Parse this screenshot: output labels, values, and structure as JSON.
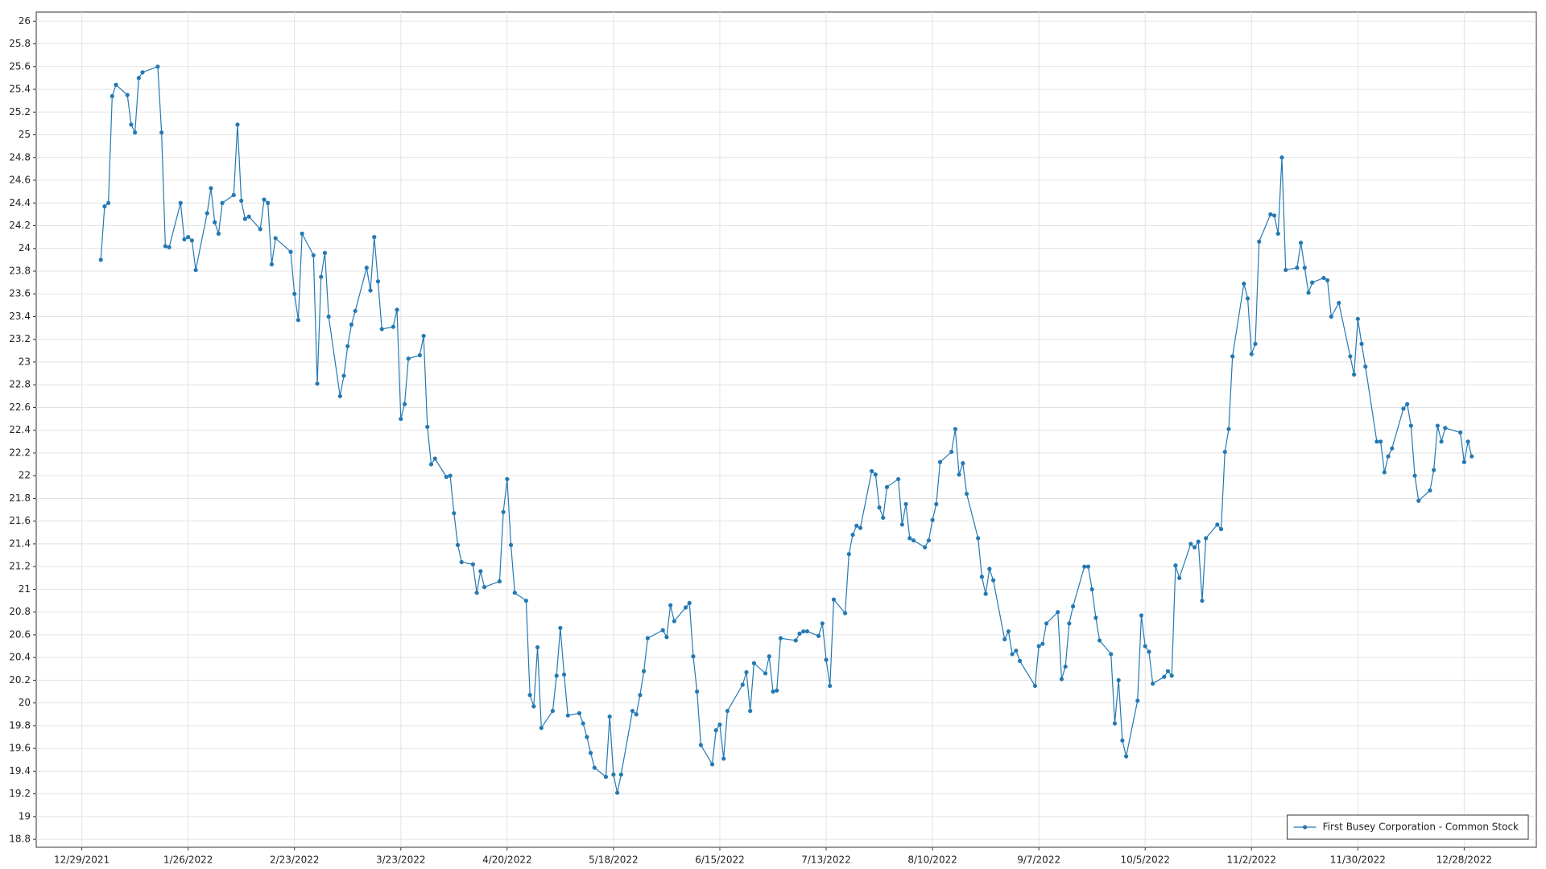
{
  "chart_data": {
    "type": "line",
    "x": [
      "1/3/2022",
      "1/4/2022",
      "1/5/2022",
      "1/6/2022",
      "1/7/2022",
      "1/10/2022",
      "1/11/2022",
      "1/12/2022",
      "1/13/2022",
      "1/14/2022",
      "1/18/2022",
      "1/19/2022",
      "1/20/2022",
      "1/21/2022",
      "1/24/2022",
      "1/25/2022",
      "1/26/2022",
      "1/27/2022",
      "1/28/2022",
      "1/31/2022",
      "2/1/2022",
      "2/2/2022",
      "2/3/2022",
      "2/4/2022",
      "2/7/2022",
      "2/8/2022",
      "2/9/2022",
      "2/10/2022",
      "2/11/2022",
      "2/14/2022",
      "2/15/2022",
      "2/16/2022",
      "2/17/2022",
      "2/18/2022",
      "2/22/2022",
      "2/23/2022",
      "2/24/2022",
      "2/25/2022",
      "2/28/2022",
      "3/1/2022",
      "3/2/2022",
      "3/3/2022",
      "3/4/2022",
      "3/7/2022",
      "3/8/2022",
      "3/9/2022",
      "3/10/2022",
      "3/11/2022",
      "3/14/2022",
      "3/15/2022",
      "3/16/2022",
      "3/17/2022",
      "3/18/2022",
      "3/21/2022",
      "3/22/2022",
      "3/23/2022",
      "3/24/2022",
      "3/25/2022",
      "3/28/2022",
      "3/29/2022",
      "3/30/2022",
      "3/31/2022",
      "4/1/2022",
      "4/4/2022",
      "4/5/2022",
      "4/6/2022",
      "4/7/2022",
      "4/8/2022",
      "4/11/2022",
      "4/12/2022",
      "4/13/2022",
      "4/14/2022",
      "4/18/2022",
      "4/19/2022",
      "4/20/2022",
      "4/21/2022",
      "4/22/2022",
      "4/25/2022",
      "4/26/2022",
      "4/27/2022",
      "4/28/2022",
      "4/29/2022",
      "5/2/2022",
      "5/3/2022",
      "5/4/2022",
      "5/5/2022",
      "5/6/2022",
      "5/9/2022",
      "5/10/2022",
      "5/11/2022",
      "5/12/2022",
      "5/13/2022",
      "5/16/2022",
      "5/17/2022",
      "5/18/2022",
      "5/19/2022",
      "5/20/2022",
      "5/23/2022",
      "5/24/2022",
      "5/25/2022",
      "5/26/2022",
      "5/27/2022",
      "5/31/2022",
      "6/1/2022",
      "6/2/2022",
      "6/3/2022",
      "6/6/2022",
      "6/7/2022",
      "6/8/2022",
      "6/9/2022",
      "6/10/2022",
      "6/13/2022",
      "6/14/2022",
      "6/15/2022",
      "6/16/2022",
      "6/17/2022",
      "6/21/2022",
      "6/22/2022",
      "6/23/2022",
      "6/24/2022",
      "6/27/2022",
      "6/28/2022",
      "6/29/2022",
      "6/30/2022",
      "7/1/2022",
      "7/5/2022",
      "7/6/2022",
      "7/7/2022",
      "7/8/2022",
      "7/11/2022",
      "7/12/2022",
      "7/13/2022",
      "7/14/2022",
      "7/15/2022",
      "7/18/2022",
      "7/19/2022",
      "7/20/2022",
      "7/21/2022",
      "7/22/2022",
      "7/25/2022",
      "7/26/2022",
      "7/27/2022",
      "7/28/2022",
      "7/29/2022",
      "8/1/2022",
      "8/2/2022",
      "8/3/2022",
      "8/4/2022",
      "8/5/2022",
      "8/8/2022",
      "8/9/2022",
      "8/10/2022",
      "8/11/2022",
      "8/12/2022",
      "8/15/2022",
      "8/16/2022",
      "8/17/2022",
      "8/18/2022",
      "8/19/2022",
      "8/22/2022",
      "8/23/2022",
      "8/24/2022",
      "8/25/2022",
      "8/26/2022",
      "8/29/2022",
      "8/30/2022",
      "8/31/2022",
      "9/1/2022",
      "9/2/2022",
      "9/6/2022",
      "9/7/2022",
      "9/8/2022",
      "9/9/2022",
      "9/12/2022",
      "9/13/2022",
      "9/14/2022",
      "9/15/2022",
      "9/16/2022",
      "9/19/2022",
      "9/20/2022",
      "9/21/2022",
      "9/22/2022",
      "9/23/2022",
      "9/26/2022",
      "9/27/2022",
      "9/28/2022",
      "9/29/2022",
      "9/30/2022",
      "10/3/2022",
      "10/4/2022",
      "10/5/2022",
      "10/6/2022",
      "10/7/2022",
      "10/10/2022",
      "10/11/2022",
      "10/12/2022",
      "10/13/2022",
      "10/14/2022",
      "10/17/2022",
      "10/18/2022",
      "10/19/2022",
      "10/20/2022",
      "10/21/2022",
      "10/24/2022",
      "10/25/2022",
      "10/26/2022",
      "10/27/2022",
      "10/28/2022",
      "10/31/2022",
      "11/1/2022",
      "11/2/2022",
      "11/3/2022",
      "11/4/2022",
      "11/7/2022",
      "11/8/2022",
      "11/9/2022",
      "11/10/2022",
      "11/11/2022",
      "11/14/2022",
      "11/15/2022",
      "11/16/2022",
      "11/17/2022",
      "11/18/2022",
      "11/21/2022",
      "11/22/2022",
      "11/23/2022",
      "11/25/2022",
      "11/28/2022",
      "11/29/2022",
      "11/30/2022",
      "12/1/2022",
      "12/2/2022",
      "12/5/2022",
      "12/6/2022",
      "12/7/2022",
      "12/8/2022",
      "12/9/2022",
      "12/12/2022",
      "12/13/2022",
      "12/14/2022",
      "12/15/2022",
      "12/16/2022",
      "12/19/2022",
      "12/20/2022",
      "12/21/2022",
      "12/22/2022",
      "12/23/2022",
      "12/27/2022",
      "12/28/2022",
      "12/29/2022",
      "12/30/2022"
    ],
    "series": [
      {
        "name": "First Busey Corporation - Common Stock",
        "color": "#2479b3",
        "values": [
          23.9,
          24.37,
          24.4,
          25.34,
          25.44,
          25.35,
          25.09,
          25.02,
          25.5,
          25.55,
          25.6,
          25.02,
          24.02,
          24.01,
          24.4,
          24.08,
          24.1,
          24.07,
          23.81,
          24.31,
          24.53,
          24.23,
          24.13,
          24.4,
          24.47,
          25.09,
          24.42,
          24.26,
          24.28,
          24.17,
          24.43,
          24.4,
          23.86,
          24.09,
          23.97,
          23.6,
          23.37,
          24.13,
          23.94,
          22.81,
          23.75,
          23.96,
          23.4,
          22.7,
          22.88,
          23.14,
          23.33,
          23.45,
          23.83,
          23.63,
          24.1,
          23.71,
          23.29,
          23.31,
          23.46,
          22.5,
          22.63,
          23.03,
          23.06,
          23.23,
          22.43,
          22.1,
          22.15,
          21.99,
          22.0,
          21.67,
          21.39,
          21.24,
          21.22,
          20.97,
          21.16,
          21.02,
          21.07,
          21.68,
          21.97,
          21.39,
          20.97,
          20.9,
          20.07,
          19.97,
          20.49,
          19.78,
          19.93,
          20.24,
          20.66,
          20.25,
          19.89,
          19.91,
          19.82,
          19.7,
          19.56,
          19.43,
          19.35,
          19.88,
          19.37,
          19.21,
          19.37,
          19.93,
          19.9,
          20.07,
          20.28,
          20.57,
          20.64,
          20.58,
          20.86,
          20.72,
          20.84,
          20.88,
          20.41,
          20.1,
          19.63,
          19.46,
          19.76,
          19.81,
          19.51,
          19.93,
          20.16,
          20.27,
          19.93,
          20.35,
          20.26,
          20.41,
          20.1,
          20.11,
          20.57,
          20.55,
          20.61,
          20.63,
          20.63,
          20.59,
          20.7,
          20.38,
          20.15,
          20.91,
          20.79,
          21.31,
          21.48,
          21.56,
          21.54,
          22.04,
          22.01,
          21.72,
          21.63,
          21.9,
          21.97,
          21.57,
          21.75,
          21.45,
          21.43,
          21.37,
          21.43,
          21.61,
          21.75,
          22.12,
          22.21,
          22.41,
          22.01,
          22.11,
          21.84,
          21.45,
          21.11,
          20.96,
          21.18,
          21.08,
          20.56,
          20.63,
          20.43,
          20.46,
          20.37,
          20.15,
          20.5,
          20.52,
          20.7,
          20.8,
          20.21,
          20.32,
          20.7,
          20.85,
          21.2,
          21.2,
          21.0,
          20.75,
          20.55,
          20.43,
          19.82,
          20.2,
          19.67,
          19.53,
          20.02,
          20.77,
          20.5,
          20.45,
          20.17,
          20.23,
          20.28,
          20.24,
          21.21,
          21.1,
          21.4,
          21.37,
          21.42,
          20.9,
          21.45,
          21.57,
          21.53,
          22.21,
          22.41,
          23.05,
          23.69,
          23.56,
          23.07,
          23.16,
          24.06,
          24.3,
          24.29,
          24.13,
          24.8,
          23.81,
          23.83,
          24.05,
          23.83,
          23.61,
          23.7,
          23.74,
          23.72,
          23.4,
          23.52,
          23.05,
          22.89,
          23.38,
          23.16,
          22.96,
          22.3,
          22.3,
          22.03,
          22.17,
          22.24,
          22.59,
          22.63,
          22.44,
          22.0,
          21.78,
          21.87,
          22.05,
          22.44,
          22.3,
          22.42,
          22.38,
          22.12,
          22.3,
          22.17
        ]
      }
    ],
    "xlim": [
      "12/17/2021",
      "1/16/2023"
    ],
    "xticks": [
      "12/29/2021",
      "1/26/2022",
      "2/23/2022",
      "3/23/2022",
      "4/20/2022",
      "5/18/2022",
      "6/15/2022",
      "7/13/2022",
      "8/10/2022",
      "9/7/2022",
      "10/5/2022",
      "11/2/2022",
      "11/30/2022",
      "12/28/2022"
    ],
    "ylim": [
      18.73,
      26.08
    ],
    "yticks": [
      18.8,
      19,
      19.2,
      19.4,
      19.6,
      19.8,
      20,
      20.2,
      20.4,
      20.6,
      20.8,
      21,
      21.2,
      21.4,
      21.6,
      21.8,
      22,
      22.2,
      22.4,
      22.6,
      22.8,
      23,
      23.2,
      23.4,
      23.6,
      23.8,
      24,
      24.2,
      24.4,
      24.6,
      24.8,
      25,
      25.2,
      25.4,
      25.6,
      25.8,
      26
    ],
    "grid": true,
    "legend": "lower right"
  }
}
